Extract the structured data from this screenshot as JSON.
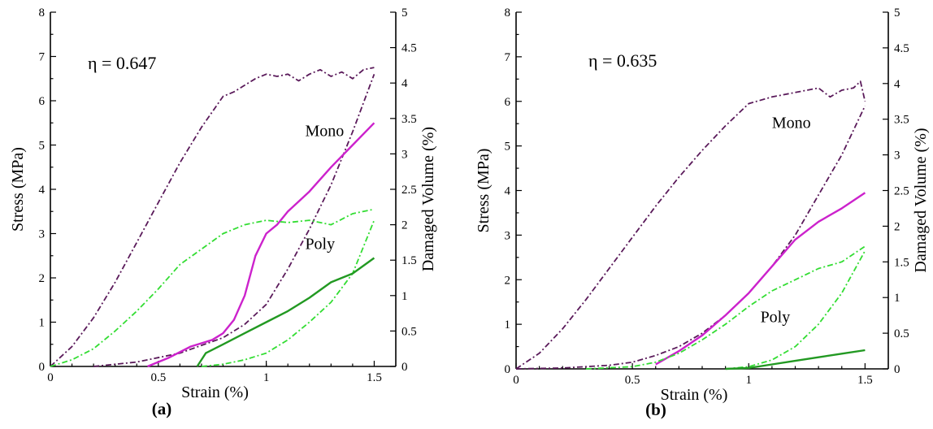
{
  "chart_data": [
    {
      "type": "line",
      "panel_label": "(a)",
      "annotation": "η = 0.647",
      "xlabel": "Strain (%)",
      "ylabel": "Stress (MPa)",
      "y2label": "Damaged Volume (%)",
      "xlim": [
        0,
        1.6
      ],
      "ylim": [
        0,
        8
      ],
      "y2lim": [
        0,
        5
      ],
      "xticks": [
        "0",
        "0.5",
        "1",
        "1.5"
      ],
      "yticks": [
        "0",
        "1",
        "2",
        "3",
        "4",
        "5",
        "6",
        "7",
        "8"
      ],
      "y2ticks": [
        "0",
        "0.5",
        "1",
        "1.5",
        "2",
        "2.5",
        "3",
        "3.5",
        "4",
        "4.5",
        "5"
      ],
      "text_labels": [
        {
          "text": "Mono",
          "x": 1.18,
          "y": 5.2
        },
        {
          "text": "Poly",
          "x": 1.18,
          "y": 2.65
        }
      ],
      "series": [
        {
          "color": "#5a1a5a",
          "style": "dashdot",
          "axis": "left",
          "x": [
            0,
            0.1,
            0.2,
            0.3,
            0.4,
            0.5,
            0.6,
            0.7,
            0.8,
            0.85,
            0.9,
            0.95,
            1.0,
            1.05,
            1.1,
            1.15,
            1.2,
            1.25,
            1.3,
            1.35,
            1.4,
            1.45,
            1.5
          ],
          "y": [
            0,
            0.45,
            1.1,
            1.9,
            2.8,
            3.7,
            4.6,
            5.4,
            6.1,
            6.2,
            6.35,
            6.5,
            6.6,
            6.55,
            6.6,
            6.45,
            6.6,
            6.7,
            6.55,
            6.65,
            6.5,
            6.7,
            6.75
          ]
        },
        {
          "color": "#5a1a5a",
          "style": "dashdot",
          "axis": "left",
          "x": [
            0.2,
            0.4,
            0.6,
            0.8,
            0.9,
            1.0,
            1.1,
            1.2,
            1.3,
            1.4,
            1.5
          ],
          "y": [
            0,
            0.1,
            0.3,
            0.65,
            0.95,
            1.4,
            2.2,
            3.1,
            4.1,
            5.3,
            6.6
          ]
        },
        {
          "color": "#cc22cc",
          "style": "solid",
          "axis": "left",
          "x": [
            0.45,
            0.55,
            0.65,
            0.75,
            0.8,
            0.85,
            0.9,
            0.95,
            1.0,
            1.05,
            1.1,
            1.2,
            1.3,
            1.4,
            1.5
          ],
          "y": [
            0,
            0.2,
            0.45,
            0.6,
            0.75,
            1.05,
            1.6,
            2.5,
            3.0,
            3.2,
            3.5,
            3.95,
            4.5,
            5.0,
            5.5
          ]
        },
        {
          "color": "#33dd33",
          "style": "dashdot",
          "axis": "left",
          "x": [
            0,
            0.1,
            0.2,
            0.3,
            0.4,
            0.5,
            0.6,
            0.7,
            0.8,
            0.9,
            1.0,
            1.1,
            1.2,
            1.3,
            1.4,
            1.5
          ],
          "y": [
            0,
            0.15,
            0.4,
            0.8,
            1.25,
            1.75,
            2.3,
            2.65,
            3.0,
            3.2,
            3.3,
            3.25,
            3.3,
            3.2,
            3.45,
            3.55
          ]
        },
        {
          "color": "#33dd33",
          "style": "dashdot",
          "axis": "left",
          "x": [
            0.7,
            0.8,
            0.9,
            1.0,
            1.1,
            1.2,
            1.3,
            1.4,
            1.5
          ],
          "y": [
            0,
            0.05,
            0.15,
            0.3,
            0.6,
            1.0,
            1.45,
            2.1,
            3.3
          ]
        },
        {
          "color": "#229922",
          "style": "solid",
          "axis": "left",
          "x": [
            0.68,
            0.72,
            0.8,
            0.9,
            1.0,
            1.1,
            1.2,
            1.3,
            1.4,
            1.5
          ],
          "y": [
            0,
            0.3,
            0.5,
            0.75,
            1.0,
            1.25,
            1.55,
            1.9,
            2.1,
            2.45
          ]
        }
      ]
    },
    {
      "type": "line",
      "panel_label": "(b)",
      "annotation": "η = 0.635",
      "xlabel": "Strain (%)",
      "ylabel": "Stress (MPa)",
      "y2label": "Damaged Volume (%)",
      "xlim": [
        0,
        1.6
      ],
      "ylim": [
        0,
        8
      ],
      "y2lim": [
        0,
        5
      ],
      "xticks": [
        "0",
        "0.5",
        "1",
        "1.5"
      ],
      "yticks": [
        "0",
        "1",
        "2",
        "3",
        "4",
        "5",
        "6",
        "7",
        "8"
      ],
      "y2ticks": [
        "0",
        "0.5",
        "1",
        "1.5",
        "2",
        "2.5",
        "3",
        "3.5",
        "4",
        "4.5",
        "5"
      ],
      "text_labels": [
        {
          "text": "Mono",
          "x": 1.1,
          "y": 5.4
        },
        {
          "text": "Poly",
          "x": 1.05,
          "y": 1.05
        }
      ],
      "series": [
        {
          "color": "#5a1a5a",
          "style": "dashdot",
          "axis": "left",
          "x": [
            0,
            0.1,
            0.2,
            0.3,
            0.4,
            0.5,
            0.6,
            0.7,
            0.8,
            0.9,
            1.0,
            1.1,
            1.2,
            1.3,
            1.35,
            1.4,
            1.45,
            1.48,
            1.5
          ],
          "y": [
            0,
            0.35,
            0.9,
            1.55,
            2.25,
            2.95,
            3.65,
            4.3,
            4.9,
            5.45,
            5.95,
            6.1,
            6.2,
            6.3,
            6.1,
            6.25,
            6.3,
            6.45,
            6.0
          ]
        },
        {
          "color": "#5a1a5a",
          "style": "dashdot",
          "axis": "left",
          "x": [
            0,
            0.2,
            0.4,
            0.5,
            0.6,
            0.7,
            0.8,
            0.9,
            1.0,
            1.1,
            1.2,
            1.3,
            1.4,
            1.5
          ],
          "y": [
            0,
            0.02,
            0.08,
            0.15,
            0.3,
            0.5,
            0.8,
            1.2,
            1.7,
            2.3,
            3.0,
            3.9,
            4.8,
            5.9
          ]
        },
        {
          "color": "#cc22cc",
          "style": "solid",
          "axis": "left",
          "x": [
            0.6,
            0.7,
            0.8,
            0.9,
            1.0,
            1.1,
            1.2,
            1.3,
            1.4,
            1.5
          ],
          "y": [
            0.1,
            0.4,
            0.75,
            1.2,
            1.7,
            2.3,
            2.9,
            3.3,
            3.6,
            3.95
          ]
        },
        {
          "color": "#33dd33",
          "style": "dashdot",
          "axis": "left",
          "x": [
            0.3,
            0.5,
            0.6,
            0.7,
            0.8,
            0.9,
            1.0,
            1.1,
            1.2,
            1.3,
            1.4,
            1.5
          ],
          "y": [
            0,
            0.05,
            0.15,
            0.35,
            0.65,
            1.0,
            1.4,
            1.75,
            2.0,
            2.25,
            2.4,
            2.75
          ]
        },
        {
          "color": "#33dd33",
          "style": "dashdot",
          "axis": "left",
          "x": [
            0.9,
            1.0,
            1.1,
            1.2,
            1.3,
            1.4,
            1.5
          ],
          "y": [
            0,
            0.05,
            0.2,
            0.5,
            1.0,
            1.7,
            2.65
          ]
        },
        {
          "color": "#229922",
          "style": "solid",
          "axis": "left",
          "x": [
            0.9,
            1.0,
            1.1,
            1.2,
            1.3,
            1.4,
            1.5
          ],
          "y": [
            0,
            0.02,
            0.1,
            0.18,
            0.26,
            0.34,
            0.42
          ]
        }
      ]
    }
  ]
}
